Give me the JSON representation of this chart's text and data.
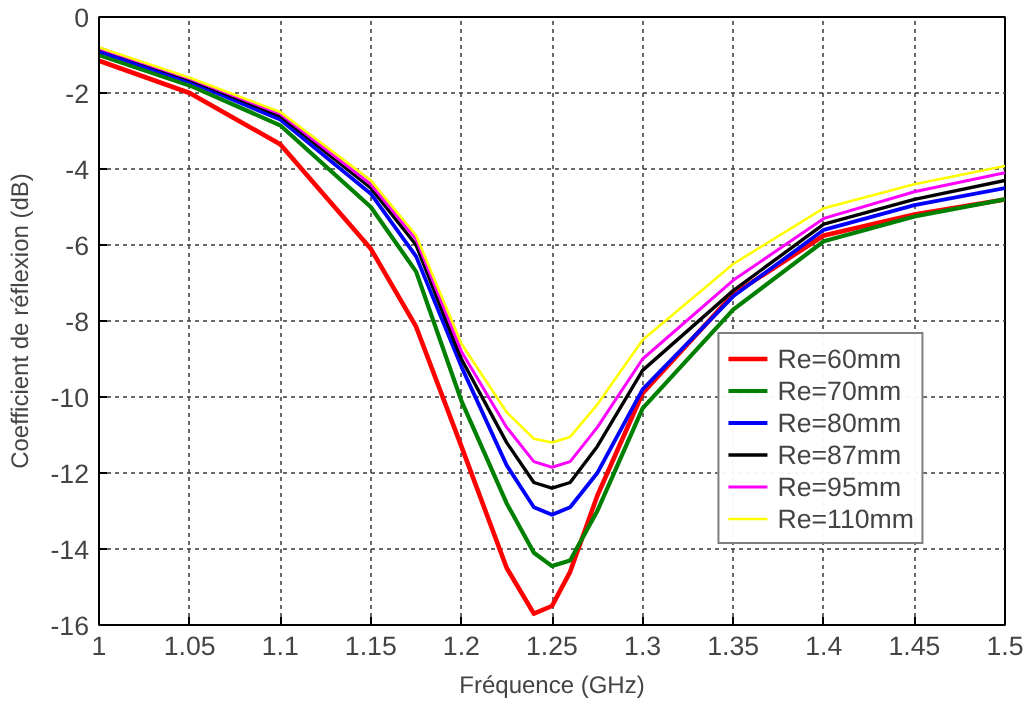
{
  "chart_data": {
    "type": "line",
    "xlabel": "Fréquence (GHz)",
    "ylabel": "Coefficient de réflexion (dB)",
    "x": [
      1,
      1.05,
      1.1,
      1.15,
      1.175,
      1.2,
      1.225,
      1.24,
      1.25,
      1.26,
      1.275,
      1.3,
      1.35,
      1.4,
      1.45,
      1.5
    ],
    "series": [
      {
        "name": "Re=60mm",
        "color": "#ff0000",
        "values": [
          -1.15,
          -2.0,
          -3.35,
          -6.1,
          -8.15,
          -11.3,
          -14.5,
          -15.7,
          -15.5,
          -14.6,
          -12.6,
          -9.9,
          -7.3,
          -5.75,
          -5.2,
          -4.8
        ]
      },
      {
        "name": "Re=70mm",
        "color": "#008000",
        "values": [
          -1.0,
          -1.8,
          -2.85,
          -5.0,
          -6.7,
          -10.1,
          -12.8,
          -14.1,
          -14.45,
          -14.3,
          -13.0,
          -10.3,
          -7.7,
          -5.9,
          -5.25,
          -4.8
        ]
      },
      {
        "name": "Re=80mm",
        "color": "#0000ff",
        "values": [
          -0.9,
          -1.7,
          -2.7,
          -4.65,
          -6.3,
          -9.2,
          -11.8,
          -12.9,
          -13.1,
          -12.9,
          -12.0,
          -9.8,
          -7.35,
          -5.6,
          -4.95,
          -4.5
        ]
      },
      {
        "name": "Re=87mm",
        "color": "#000000",
        "values": [
          -0.82,
          -1.65,
          -2.6,
          -4.5,
          -6.0,
          -9.0,
          -11.2,
          -12.25,
          -12.4,
          -12.25,
          -11.3,
          -9.3,
          -7.2,
          -5.45,
          -4.8,
          -4.3
        ]
      },
      {
        "name": "Re=95mm",
        "color": "#ff00ff",
        "values": [
          -0.82,
          -1.62,
          -2.55,
          -4.4,
          -5.85,
          -8.8,
          -10.8,
          -11.7,
          -11.85,
          -11.7,
          -10.8,
          -9.0,
          -6.93,
          -5.3,
          -4.6,
          -4.1
        ]
      },
      {
        "name": "Re=110mm",
        "color": "#ffff00",
        "values": [
          -0.8,
          -1.6,
          -2.5,
          -4.3,
          -5.75,
          -8.6,
          -10.4,
          -11.1,
          -11.2,
          -11.05,
          -10.2,
          -8.5,
          -6.5,
          -5.03,
          -4.4,
          -3.92
        ]
      }
    ],
    "xlim": [
      1,
      1.5
    ],
    "xticks": [
      1,
      1.05,
      1.1,
      1.15,
      1.2,
      1.25,
      1.3,
      1.35,
      1.4,
      1.45,
      1.5
    ],
    "ylim": [
      -16,
      0
    ],
    "yticks": [
      -16,
      -14,
      -12,
      -10,
      -8,
      -6,
      -4,
      -2,
      0
    ],
    "grid": true,
    "legend": "bottom right",
    "marker": "none",
    "line_style": "solid"
  }
}
